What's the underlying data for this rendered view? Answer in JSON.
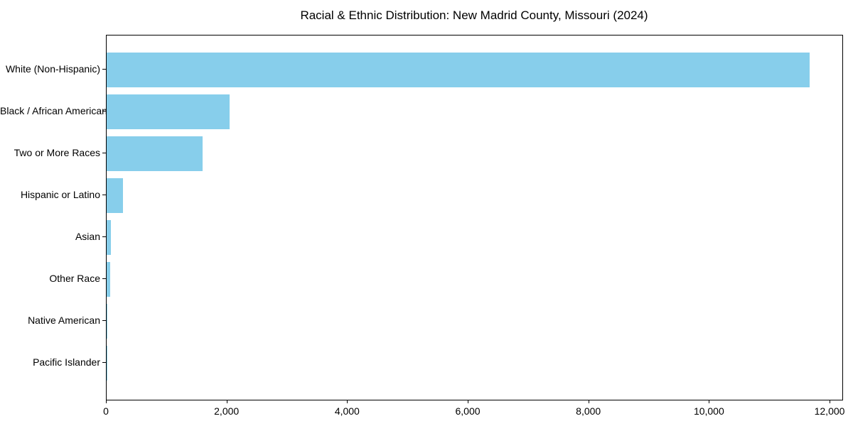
{
  "chart_data": {
    "type": "bar",
    "orientation": "horizontal",
    "title": "Racial & Ethnic Distribution: New Madrid County, Missouri (2024)",
    "categories": [
      "White (Non-Hispanic)",
      "Black / African American",
      "Two or More Races",
      "Hispanic or Latino",
      "Asian",
      "Other Race",
      "Native American",
      "Pacific Islander"
    ],
    "values": [
      11660,
      2034,
      1586,
      275,
      66,
      55,
      12,
      4
    ],
    "xlabel": "",
    "ylabel": "",
    "xlim": [
      0,
      12200
    ],
    "xticks": [
      0,
      2000,
      4000,
      6000,
      8000,
      10000,
      12000
    ],
    "xtick_labels": [
      "0",
      "2,000",
      "4,000",
      "6,000",
      "8,000",
      "10,000",
      "12,000"
    ],
    "bar_color": "#87CEEB",
    "background_color": "#ffffff",
    "spine_color": "#000000",
    "grid": false,
    "legend": null
  }
}
